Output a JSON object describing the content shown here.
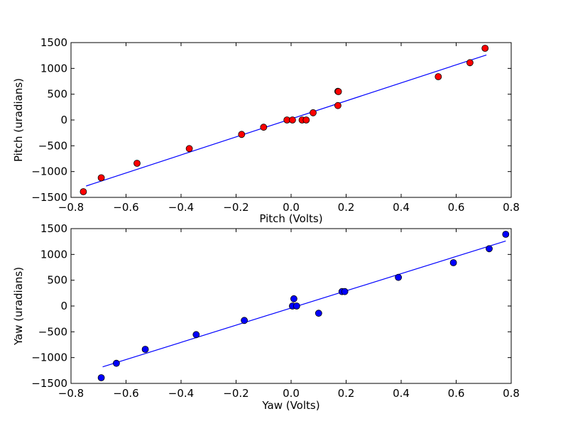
{
  "chart_data": [
    {
      "type": "scatter",
      "xlabel": "Pitch (Volts)",
      "ylabel": "Pitch (uradians)",
      "xlim": [
        -0.8,
        0.8
      ],
      "ylim": [
        -1500,
        1500
      ],
      "xticks": [
        -0.8,
        -0.6,
        -0.4,
        -0.2,
        0.0,
        0.2,
        0.4,
        0.6,
        0.8
      ],
      "yticks": [
        -1500,
        -1000,
        -500,
        0,
        500,
        1000,
        1500
      ],
      "xtick_labels": [
        "−0.8",
        "−0.6",
        "−0.4",
        "−0.2",
        "0.0",
        "0.2",
        "0.4",
        "0.6",
        "0.8"
      ],
      "ytick_labels": [
        "−1500",
        "−1000",
        "−500",
        "0",
        "500",
        "1000",
        "1500"
      ],
      "grid": false,
      "series": [
        {
          "kind": "points",
          "color": "#ff0000",
          "x": [
            -0.755,
            -0.69,
            -0.56,
            -0.37,
            -0.18,
            -0.1,
            -0.015,
            0.005,
            0.04,
            0.055,
            0.08,
            0.17,
            0.17,
            0.172,
            0.535,
            0.65,
            0.705
          ],
          "y": [
            -1390,
            -1120,
            -840,
            -555,
            -280,
            -140,
            0,
            0,
            0,
            0,
            140,
            280,
            555,
            550,
            840,
            1110,
            1390
          ]
        },
        {
          "kind": "fit-line",
          "color": "#0000ff",
          "x": [
            -0.745,
            0.71
          ],
          "y": [
            -1280,
            1260
          ]
        }
      ]
    },
    {
      "type": "scatter",
      "xlabel": "Yaw (Volts)",
      "ylabel": "Yaw (uradians)",
      "xlim": [
        -0.8,
        0.8
      ],
      "ylim": [
        -1500,
        1500
      ],
      "xticks": [
        -0.8,
        -0.6,
        -0.4,
        -0.2,
        0.0,
        0.2,
        0.4,
        0.6,
        0.8
      ],
      "yticks": [
        -1500,
        -1000,
        -500,
        0,
        500,
        1000,
        1500
      ],
      "xtick_labels": [
        "−0.8",
        "−0.6",
        "−0.4",
        "−0.2",
        "0.0",
        "0.2",
        "0.4",
        "0.6",
        "0.8"
      ],
      "ytick_labels": [
        "−1500",
        "−1000",
        "−500",
        "0",
        "500",
        "1000",
        "1500"
      ],
      "grid": false,
      "series": [
        {
          "kind": "points",
          "color": "#0000ff",
          "x": [
            -0.69,
            -0.635,
            -0.53,
            -0.345,
            -0.17,
            0.005,
            0.01,
            0.02,
            0.1,
            0.185,
            0.195,
            0.39,
            0.59,
            0.72,
            0.78
          ],
          "y": [
            -1390,
            -1110,
            -840,
            -555,
            -280,
            0,
            140,
            0,
            -140,
            280,
            280,
            555,
            840,
            1110,
            1390
          ],
          "duplicates": [
            [
              0.005,
              140
            ],
            [
              0.01,
              0
            ]
          ]
        },
        {
          "kind": "fit-line",
          "color": "#0000ff",
          "x": [
            -0.685,
            0.78
          ],
          "y": [
            -1180,
            1260
          ]
        }
      ]
    }
  ]
}
